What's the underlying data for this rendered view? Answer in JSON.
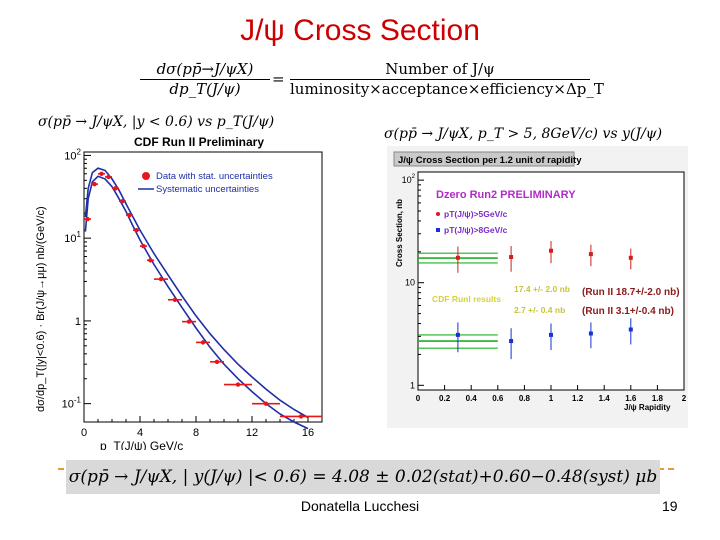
{
  "slide": {
    "title": "J/ψ Cross Section",
    "formula": {
      "lhs_num": "dσ(pp̄→J/ψX)",
      "lhs_den": "dp_T(J/ψ)",
      "rhs_num": "Number of  J/ψ",
      "rhs_den": "luminosity×acceptance×efficiency×Δp_T"
    },
    "left_caption": "σ(pp̄ → J/ψX, |y < 0.6) vs p_T(J/ψ)",
    "right_caption": "σ(pp̄ → J/ψX, p_T > 5, 8GeV/c) vs y(J/ψ)",
    "result": "σ(pp̄ → J/ψX, | y(J/ψ) |< 0.6) = 4.08 ± 0.02(stat)+0.60−0.48(syst) μb",
    "footer_author": "Donatella Lucchesi",
    "page_number": "19"
  },
  "chart_data": [
    {
      "type": "line",
      "title": "CDF Run II Preliminary",
      "xlabel": "p_T(J/ψ) GeV/c",
      "ylabel": "dσ/dp_T(|y|<0.6) · Br(J/ψ→μμ) nb/(GeV/c)",
      "xlim": [
        0,
        17
      ],
      "ylim": [
        0.06,
        110
      ],
      "yscale": "log",
      "x_ticks": [
        "0",
        "4",
        "8",
        "12",
        "16"
      ],
      "y_ticks": [
        "10^2",
        "10^1",
        "1",
        "10^-1"
      ],
      "legend": [
        "Data with stat. uncertainties",
        "Systematic uncertainties"
      ],
      "legend_placement": "top-right",
      "colors": {
        "data": "#e8151b",
        "band": "#1e2fa8"
      },
      "series": [
        {
          "name": "Data with stat. uncertainties",
          "x": [
            0.25,
            0.75,
            1.25,
            1.75,
            2.25,
            2.75,
            3.25,
            3.75,
            4.25,
            4.75,
            5.5,
            6.5,
            7.5,
            8.5,
            9.5,
            11,
            13,
            15.5
          ],
          "y": [
            17,
            45,
            60,
            55,
            40,
            28,
            19,
            12.5,
            8,
            5.4,
            3.2,
            1.8,
            0.98,
            0.55,
            0.32,
            0.17,
            0.1,
            0.07
          ],
          "xerr": [
            0.25,
            0.25,
            0.25,
            0.25,
            0.25,
            0.25,
            0.25,
            0.25,
            0.25,
            0.25,
            0.5,
            0.5,
            0.5,
            0.5,
            0.5,
            1,
            1,
            1.5
          ]
        }
      ],
      "band_upper": {
        "x": [
          0.1,
          0.3,
          0.6,
          1.0,
          1.5,
          2.0,
          2.5,
          3.0,
          3.5,
          4.0,
          5.0,
          6.0,
          7.0,
          8.0,
          9.0,
          10.0,
          11.0,
          12.0,
          13.0,
          14.0,
          15.0,
          16.0
        ],
        "y": [
          18,
          40,
          62,
          70,
          66,
          52,
          38,
          26,
          18,
          12.5,
          6.5,
          3.6,
          2.0,
          1.15,
          0.7,
          0.45,
          0.3,
          0.21,
          0.15,
          0.11,
          0.085,
          0.068
        ]
      },
      "band_lower": {
        "x": [
          0.1,
          0.3,
          0.6,
          1.0,
          1.5,
          2.0,
          2.5,
          3.0,
          3.5,
          4.0,
          5.0,
          6.0,
          7.0,
          8.0,
          9.0,
          10.0,
          11.0,
          12.0,
          13.0,
          14.0,
          15.0,
          16.0
        ],
        "y": [
          12,
          30,
          48,
          56,
          52,
          42,
          30,
          21,
          14,
          9.5,
          4.8,
          2.6,
          1.45,
          0.82,
          0.48,
          0.3,
          0.2,
          0.14,
          0.1,
          0.075,
          0.06,
          0.05
        ]
      }
    },
    {
      "type": "scatter",
      "title": "J/ψ Cross Section per 1.2 unit of rapidity",
      "subtitle": "Dzero Run2 PRELIMINARY",
      "xlabel": "J/ψ Rapidity",
      "ylabel": "Cross Section, nb",
      "xlim": [
        0,
        2
      ],
      "ylim": [
        0.9,
        120
      ],
      "yscale": "log",
      "x_ticks": [
        "0",
        "0.2",
        "0.4",
        "0.6",
        "0.8",
        "1",
        "1.2",
        "1.4",
        "1.6",
        "1.8",
        "2"
      ],
      "y_ticks": [
        "10^2",
        "10",
        "1"
      ],
      "legend": [
        "pT(J/ψ)>5GeV/c",
        "pT(J/ψ)>8GeV/c"
      ],
      "colors": {
        "pt5": "#d01f1f",
        "pt8": "#1a2fd6",
        "cdf": "#1fb01f"
      },
      "series": [
        {
          "name": "pT(J/ψ)>5GeV/c",
          "x": [
            0.3,
            0.7,
            1.0,
            1.3,
            1.6
          ],
          "y": [
            17.5,
            17.8,
            20.5,
            19.0,
            17.5
          ],
          "yerr": [
            5,
            5,
            5,
            4.5,
            4
          ]
        },
        {
          "name": "pT(J/ψ)>8GeV/c",
          "x": [
            0.3,
            0.7,
            1.0,
            1.3,
            1.6
          ],
          "y": [
            3.1,
            2.7,
            3.1,
            3.2,
            3.5
          ],
          "yerr": [
            1.0,
            0.9,
            0.9,
            0.9,
            1.0
          ]
        }
      ],
      "cdf_band_high": [
        15.6,
        17.4,
        19.4
      ],
      "cdf_band_low": [
        2.3,
        2.7,
        3.1
      ],
      "cdf_band_xmax": 0.6,
      "annotations": {
        "cdf_label": "CDF RunI results",
        "cdf_high": "17.4 +/- 2.0 nb",
        "cdf_low": "2.7 +/- 0.4 nb",
        "run2_high": "(Run II 18.7+/-2.0 nb)",
        "run2_low": "(Run II 3.1+/-0.4 nb)"
      }
    }
  ]
}
